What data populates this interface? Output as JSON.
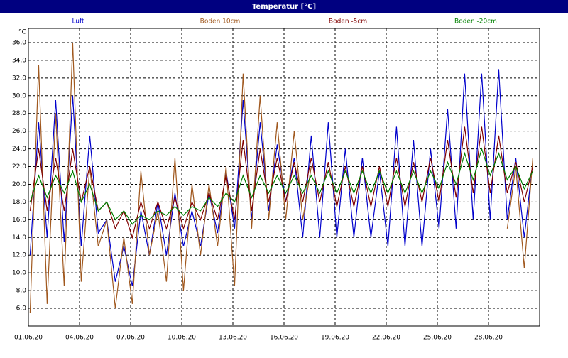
{
  "chart_data": {
    "type": "line",
    "title": "Temperatur [°C]",
    "y_unit": "°C",
    "x": [
      0.1,
      0.6,
      1.1,
      1.6,
      2.1,
      2.6,
      3.1,
      3.6,
      4.1,
      4.6,
      5.1,
      5.6,
      6.1,
      6.6,
      7.1,
      7.6,
      8.1,
      8.6,
      9.1,
      9.6,
      10.1,
      10.6,
      11.1,
      11.6,
      12.1,
      12.6,
      13.1,
      13.6,
      14.1,
      14.6,
      15.1,
      15.6,
      16.1,
      16.6,
      17.1,
      17.6,
      18.1,
      18.6,
      19.1,
      19.6,
      20.1,
      20.6,
      21.1,
      21.6,
      22.1,
      22.6,
      23.1,
      23.6,
      24.1,
      24.6,
      25.1,
      25.6,
      26.1,
      26.6,
      27.1,
      27.6,
      28.1,
      28.6,
      29.1,
      29.6
    ],
    "xlim": [
      0,
      30
    ],
    "xticks": [
      {
        "value": 0,
        "label": "01.06.20"
      },
      {
        "value": 3,
        "label": "04.06.20"
      },
      {
        "value": 6,
        "label": "07.06.20"
      },
      {
        "value": 9,
        "label": "10.06.20"
      },
      {
        "value": 12,
        "label": "13.06.20"
      },
      {
        "value": 15,
        "label": "16.06.20"
      },
      {
        "value": 18,
        "label": "19.06.20"
      },
      {
        "value": 21,
        "label": "22.06.20"
      },
      {
        "value": 24,
        "label": "25.06.20"
      },
      {
        "value": 27,
        "label": "28.06.20"
      }
    ],
    "ylim": [
      4,
      37.6
    ],
    "yticks": [
      {
        "value": 6,
        "label": "6,0"
      },
      {
        "value": 8,
        "label": "8,0"
      },
      {
        "value": 10,
        "label": "10,0"
      },
      {
        "value": 12,
        "label": "12,0"
      },
      {
        "value": 14,
        "label": "14,0"
      },
      {
        "value": 16,
        "label": "16,0"
      },
      {
        "value": 18,
        "label": "18,0"
      },
      {
        "value": 20,
        "label": "20,0"
      },
      {
        "value": 22,
        "label": "22,0"
      },
      {
        "value": 24,
        "label": "24,0"
      },
      {
        "value": 26,
        "label": "26,0"
      },
      {
        "value": 28,
        "label": "28,0"
      },
      {
        "value": 30,
        "label": "30,0"
      },
      {
        "value": 32,
        "label": "32,0"
      },
      {
        "value": 34,
        "label": "34,0"
      },
      {
        "value": 36,
        "label": "36,0"
      }
    ],
    "grid": true,
    "series": [
      {
        "name": "Luft",
        "color": "#0000cc",
        "values": [
          12,
          27,
          14,
          29.5,
          13.5,
          30,
          13,
          25.5,
          14.5,
          16,
          9,
          13,
          8.5,
          17,
          12,
          18,
          12,
          19,
          13,
          17,
          13,
          19,
          14.5,
          21.5,
          15,
          29.5,
          16,
          27,
          17,
          24.5,
          18,
          23,
          14,
          25.5,
          14,
          27,
          14,
          24,
          14,
          23,
          14,
          21.5,
          13,
          26.5,
          13,
          25,
          13,
          24,
          15,
          28.5,
          15,
          32.5,
          16,
          32.5,
          16,
          33,
          16,
          23,
          14,
          22.5
        ]
      },
      {
        "name": "Boden 10cm",
        "color": "#a0581e",
        "values": [
          5.5,
          33.5,
          6.5,
          28,
          8.5,
          36,
          9,
          22,
          13,
          16,
          6,
          14,
          6.5,
          21.5,
          12,
          17,
          9,
          23,
          8,
          20,
          12,
          20,
          13,
          22,
          8.5,
          32.5,
          15,
          30,
          16,
          27,
          16,
          26,
          16,
          22,
          null,
          null,
          null,
          null,
          null,
          null,
          null,
          null,
          null,
          null,
          null,
          null,
          null,
          null,
          null,
          null,
          null,
          null,
          null,
          null,
          null,
          null,
          15,
          22,
          10.5,
          23
        ]
      },
      {
        "name": "Boden -5cm",
        "color": "#800000",
        "values": [
          17,
          24,
          17,
          23,
          17,
          24,
          18,
          22,
          17,
          18,
          15,
          17,
          14,
          18,
          15,
          18,
          15,
          18.5,
          15,
          18,
          16,
          19,
          16,
          21,
          16,
          25,
          17,
          24,
          18,
          23,
          18,
          22.5,
          18,
          23,
          18,
          22.5,
          17.5,
          22,
          17.5,
          22,
          17.5,
          22,
          17.5,
          23,
          17.5,
          22.5,
          18,
          23,
          18,
          25,
          18.5,
          26.5,
          19,
          26.5,
          19,
          25.5,
          19,
          22.5,
          18,
          22
        ]
      },
      {
        "name": "Boden -20cm",
        "color": "#008000",
        "values": [
          18,
          21,
          18.5,
          21,
          19,
          21.5,
          18,
          20,
          17,
          18,
          16,
          17,
          15.5,
          16.5,
          16,
          17,
          16.5,
          17.5,
          16.5,
          17.5,
          17,
          18.5,
          17.5,
          19,
          18,
          21,
          18.5,
          21,
          19,
          21,
          19,
          21,
          19,
          21,
          19,
          21.5,
          19,
          21.5,
          19,
          21.5,
          19,
          21.5,
          19,
          21.5,
          19,
          21.5,
          19,
          21.5,
          19.5,
          22.5,
          20,
          23.5,
          20.5,
          24,
          21,
          23.5,
          20.5,
          22,
          19.5,
          21.5
        ]
      }
    ]
  }
}
